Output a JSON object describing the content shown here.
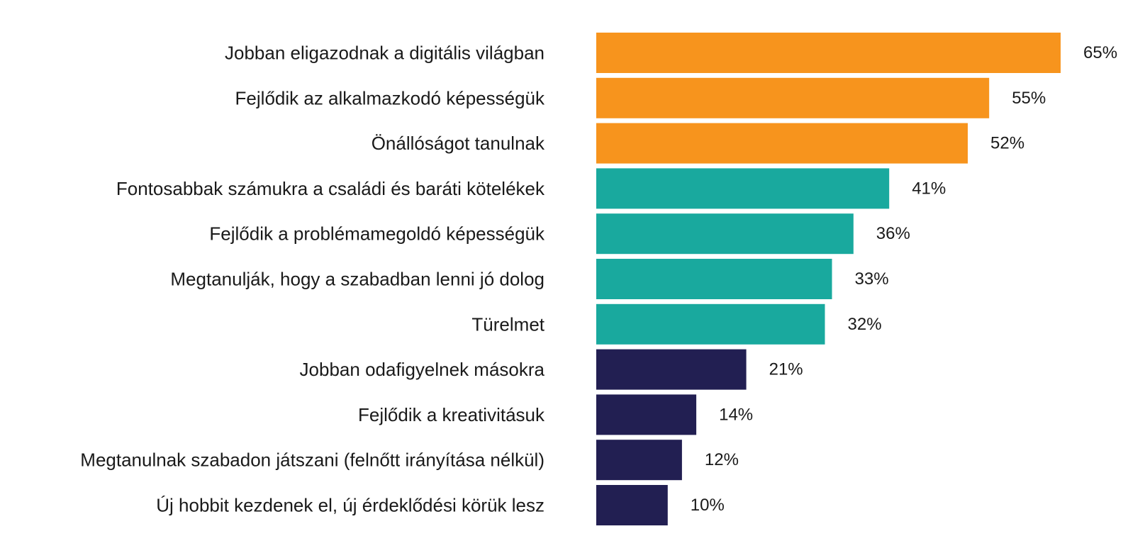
{
  "colors": {
    "orange": "#F7941D",
    "teal": "#19A99E",
    "navy": "#221F52"
  },
  "chart_data": {
    "type": "bar",
    "orientation": "horizontal",
    "categories": [
      "Jobban eligazodnak a digitális világban",
      "Fejlődik az alkalmazkodó képességük",
      "Önállóságot tanulnak",
      "Fontosabbak számukra a családi és baráti kötelékek",
      "Fejlődik a problémamegoldó képességük",
      "Megtanulják, hogy a szabadban lenni jó dolog",
      "Türelmet",
      "Jobban odafigyelnek másokra",
      "Fejlődik a kreativitásuk",
      "Megtanulnak szabadon játszani (felnőtt irányítása nélkül)",
      "Új hobbit kezdenek el, új érdeklődési körük lesz"
    ],
    "values": [
      65,
      55,
      52,
      41,
      36,
      33,
      32,
      21,
      14,
      12,
      10
    ],
    "value_labels": [
      "65%",
      "55%",
      "52%",
      "41%",
      "36%",
      "33%",
      "32%",
      "21%",
      "14%",
      "12%",
      "10%"
    ],
    "bar_colors": [
      "orange",
      "orange",
      "orange",
      "teal",
      "teal",
      "teal",
      "teal",
      "navy",
      "navy",
      "navy",
      "navy"
    ],
    "xlim": [
      0,
      65
    ],
    "grid": false,
    "legend": "none"
  }
}
